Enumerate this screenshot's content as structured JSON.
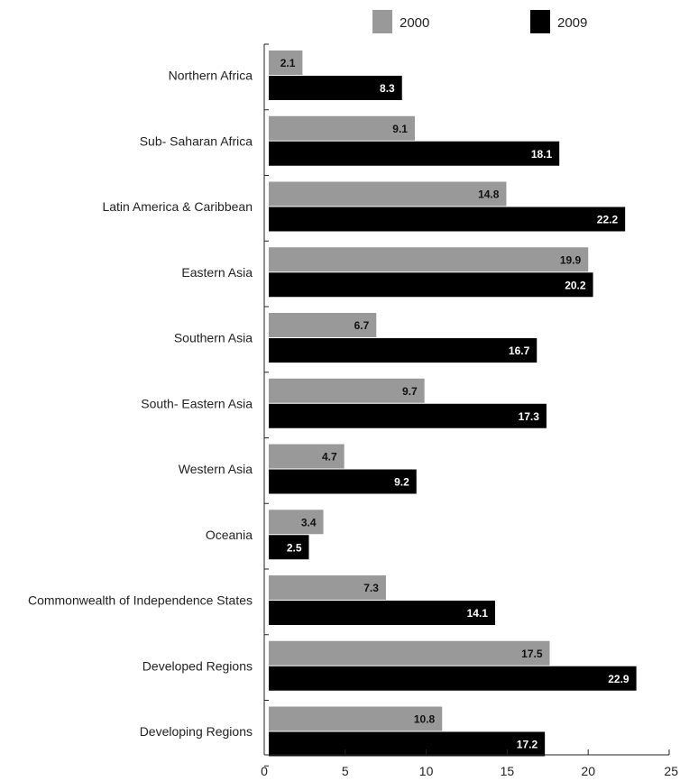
{
  "chart_data": {
    "type": "bar",
    "orientation": "horizontal",
    "categories": [
      "Northern Africa",
      "Sub- Saharan Africa",
      "Latin America & Caribbean",
      "Eastern Asia",
      "Southern Asia",
      "South- Eastern Asia",
      "Western Asia",
      "Oceania",
      "Commonwealth of Independence States",
      "Developed Regions",
      "Developing Regions"
    ],
    "series": [
      {
        "name": "2000",
        "color": "#999999",
        "label_color": "#111111",
        "values": [
          2.1,
          9.1,
          14.8,
          19.9,
          6.7,
          9.7,
          4.7,
          3.4,
          7.3,
          17.5,
          10.8
        ]
      },
      {
        "name": "2009",
        "color": "#000000",
        "label_color": "#ffffff",
        "values": [
          8.3,
          18.1,
          22.2,
          20.2,
          16.7,
          17.3,
          9.2,
          2.5,
          14.1,
          22.9,
          17.2
        ]
      }
    ],
    "xlim": [
      0,
      25
    ],
    "xticks": [
      "0",
      "5",
      "10",
      "15",
      "20",
      "25"
    ],
    "legend_position": "top",
    "grid": false
  }
}
